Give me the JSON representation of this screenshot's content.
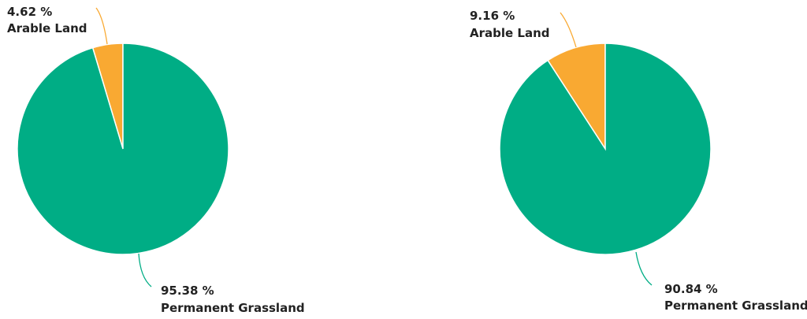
{
  "chart_data": [
    {
      "type": "pie",
      "slices": [
        {
          "label": "Arable Land",
          "value": 4.62,
          "value_text": "4.62 %",
          "color": "#f9a932"
        },
        {
          "label": "Permanent Grassland",
          "value": 95.38,
          "value_text": "95.38 %",
          "color": "#00ad85"
        }
      ]
    },
    {
      "type": "pie",
      "slices": [
        {
          "label": "Arable Land",
          "value": 9.16,
          "value_text": "9.16 %",
          "color": "#f9a932"
        },
        {
          "label": "Permanent Grassland",
          "value": 90.84,
          "value_text": "90.84 %",
          "color": "#00ad85"
        }
      ]
    }
  ]
}
